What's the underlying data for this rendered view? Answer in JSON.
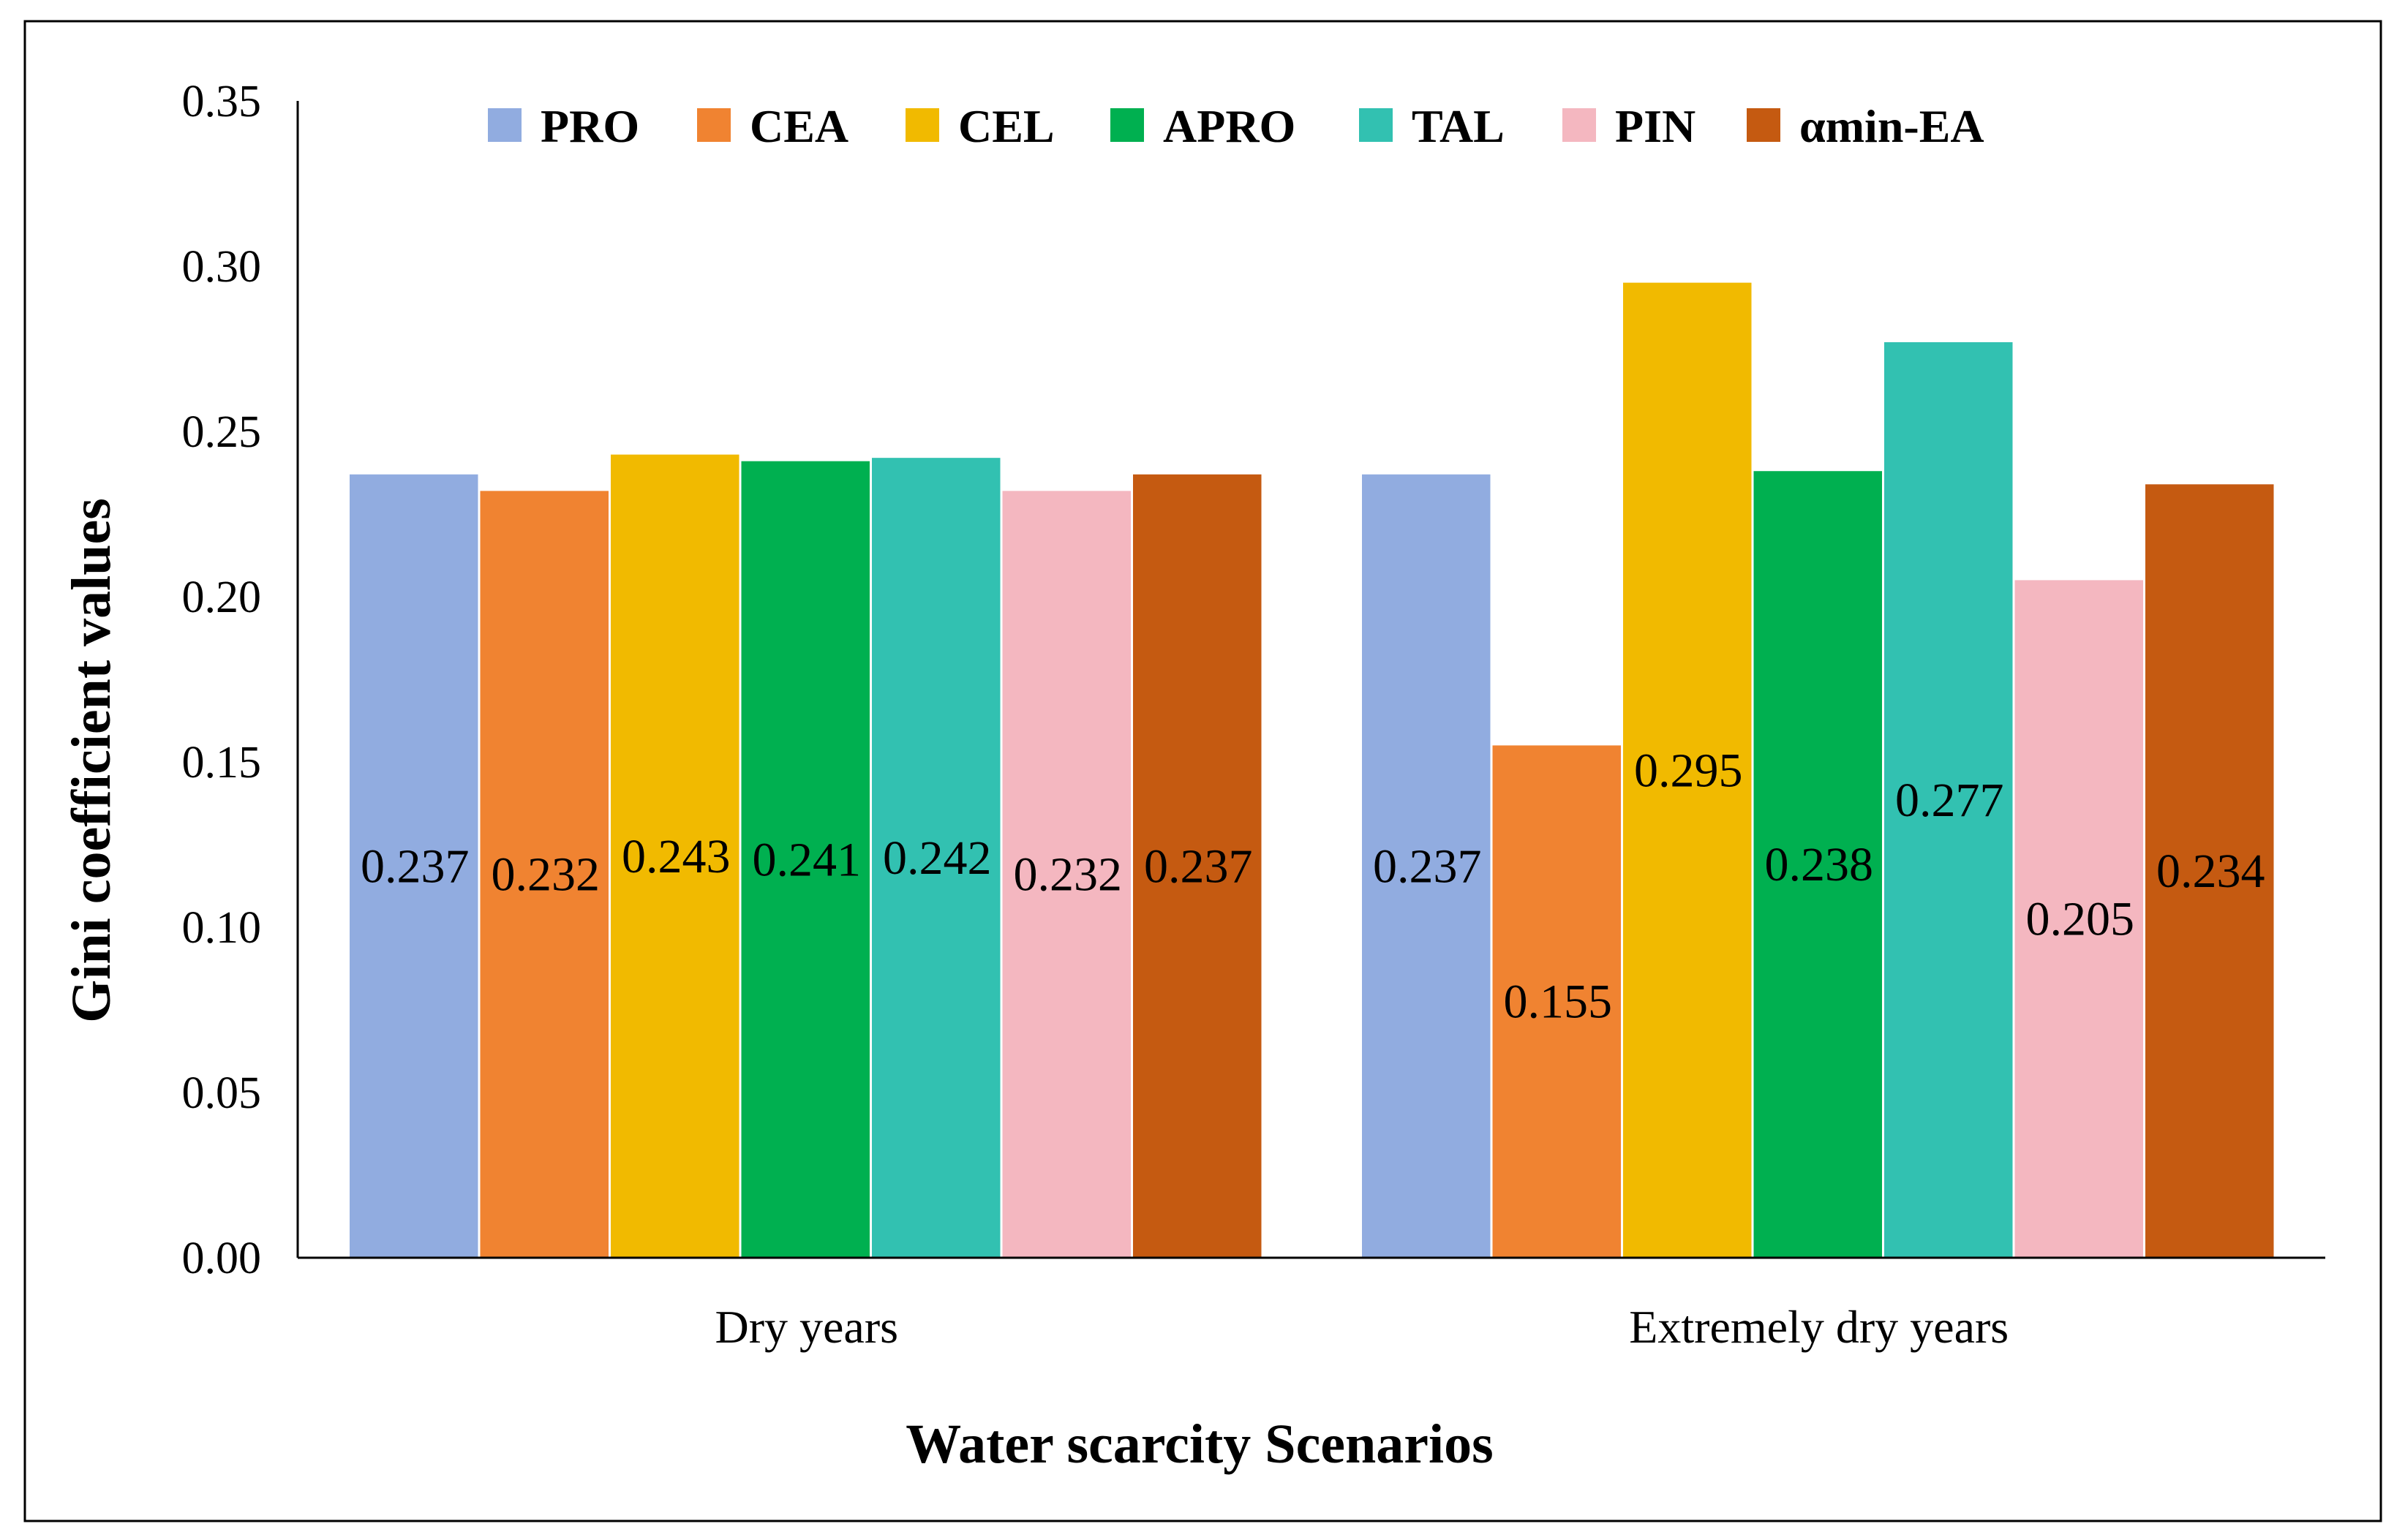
{
  "chart_data": {
    "type": "bar",
    "title": "",
    "xlabel": "Water scarcity Scenarios",
    "ylabel": "Gini coefficient values",
    "ylim": [
      0,
      0.35
    ],
    "yticks": [
      "0.00",
      "0.05",
      "0.10",
      "0.15",
      "0.20",
      "0.25",
      "0.30",
      "0.35"
    ],
    "categories": [
      "Dry years",
      "Extremely dry years"
    ],
    "legend_position": "top",
    "grid": false,
    "series": [
      {
        "name": "PRO",
        "color": "#91ACE0",
        "values": [
          0.237,
          0.237
        ],
        "labels": [
          "0.237",
          "0.237"
        ]
      },
      {
        "name": "CEA",
        "color": "#F08331",
        "values": [
          0.232,
          0.155
        ],
        "labels": [
          "0.232",
          "0.155"
        ]
      },
      {
        "name": "CEL",
        "color": "#F1BA00",
        "values": [
          0.243,
          0.295
        ],
        "labels": [
          "0.243",
          "0.295"
        ]
      },
      {
        "name": "APRO",
        "color": "#00B050",
        "values": [
          0.241,
          0.238
        ],
        "labels": [
          "0.241",
          "0.238"
        ]
      },
      {
        "name": "TAL",
        "color": "#32C1B1",
        "values": [
          0.242,
          0.277
        ],
        "labels": [
          "0.242",
          "0.277"
        ]
      },
      {
        "name": "PIN",
        "color": "#F4B7C0",
        "values": [
          0.232,
          0.205
        ],
        "labels": [
          "0.232",
          "0.205"
        ]
      },
      {
        "name": "αmin-EA",
        "color": "#C55A11",
        "values": [
          0.237,
          0.234
        ],
        "labels": [
          "0.237",
          "0.234"
        ]
      }
    ]
  }
}
